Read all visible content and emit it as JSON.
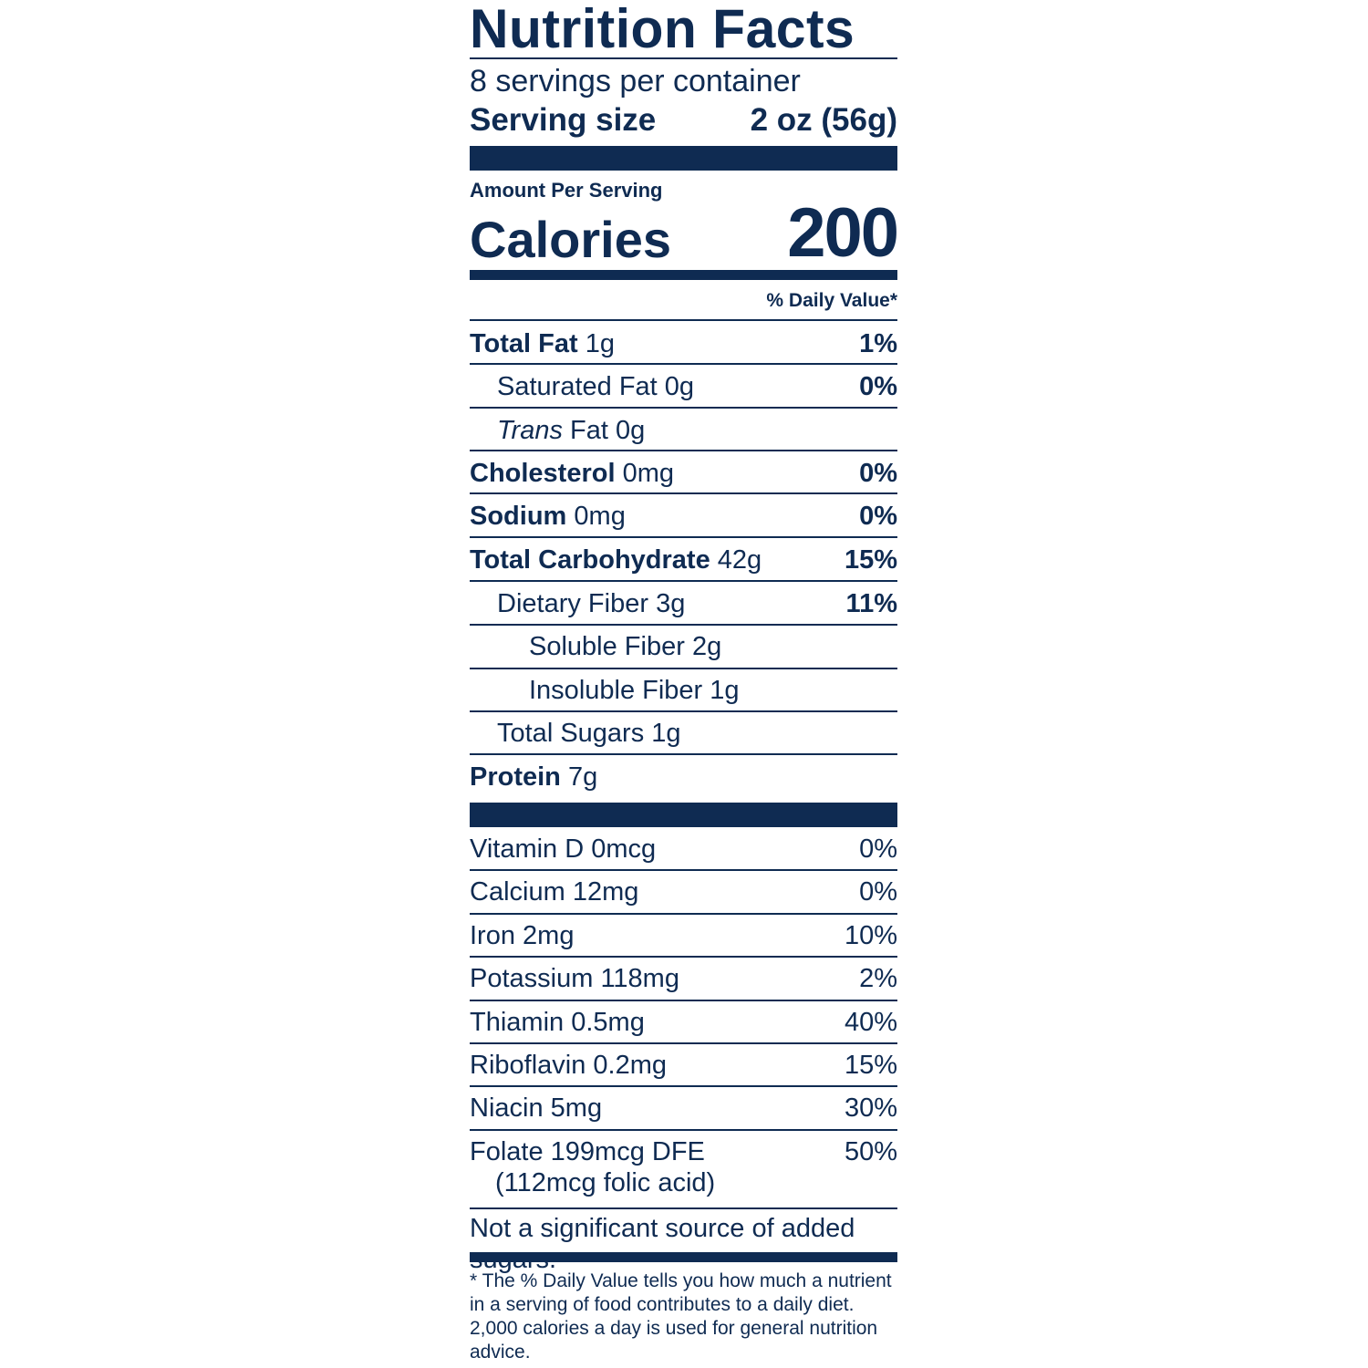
{
  "title": "Nutrition Facts",
  "servings_per_container": "8 servings per container",
  "serving_size": {
    "label": "Serving size",
    "value": "2 oz (56g)"
  },
  "amount_per_serving": "Amount Per Serving",
  "calories": {
    "label": "Calories",
    "value": "200"
  },
  "daily_value_header": "% Daily Value*",
  "nutrients": [
    {
      "name": "Total Fat",
      "amount": "1g",
      "dv": "1%"
    },
    {
      "name": "Saturated Fat",
      "amount": "0g",
      "dv": "0%"
    },
    {
      "name": "Trans",
      "name_rest": "Fat",
      "amount": "0g"
    },
    {
      "name": "Cholesterol",
      "amount": "0mg",
      "dv": "0%"
    },
    {
      "name": "Sodium",
      "amount": "0mg",
      "dv": "0%"
    },
    {
      "name": "Total Carbohydrate",
      "amount": "42g",
      "dv": "15%"
    },
    {
      "name": "Dietary Fiber",
      "amount": "3g",
      "dv": "11%"
    },
    {
      "name": "Soluble Fiber",
      "amount": "2g"
    },
    {
      "name": "Insoluble Fiber",
      "amount": "1g"
    },
    {
      "name": "Total Sugars",
      "amount": "1g"
    },
    {
      "name": "Protein",
      "amount": "7g"
    }
  ],
  "vitamins": [
    {
      "name": "Vitamin D",
      "amount": "0mcg",
      "dv": "0%"
    },
    {
      "name": "Calcium",
      "amount": "12mg",
      "dv": "0%"
    },
    {
      "name": "Iron",
      "amount": "2mg",
      "dv": "10%"
    },
    {
      "name": "Potassium",
      "amount": "118mg",
      "dv": "2%"
    },
    {
      "name": "Thiamin",
      "amount": "0.5mg",
      "dv": "40%"
    },
    {
      "name": "Riboflavin",
      "amount": "0.2mg",
      "dv": "15%"
    },
    {
      "name": "Niacin",
      "amount": "5mg",
      "dv": "30%"
    },
    {
      "name": "Folate",
      "amount": "199mcg DFE",
      "detail": "(112mcg folic acid)",
      "dv": "50%"
    }
  ],
  "added_sugars_note": "Not a significant source of added sugars.",
  "footnote": "* The % Daily Value tells you how much a nutrient in a serving of food contributes to a daily diet. 2,000 calories a day is used for general nutrition advice.",
  "colors": {
    "ink": "#0f2b52",
    "background": "#ffffff"
  }
}
